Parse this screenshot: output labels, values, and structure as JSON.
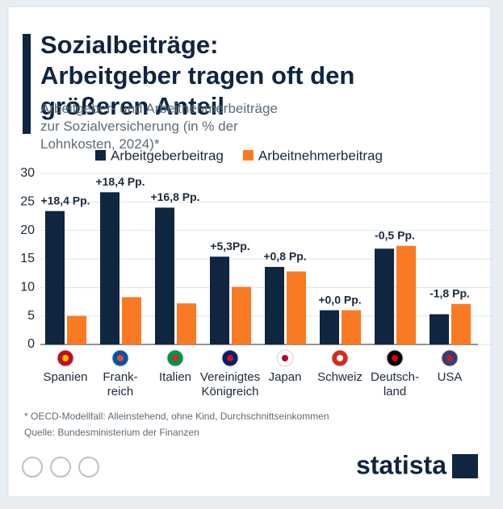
{
  "chart_data": {
    "type": "bar",
    "title": "Sozialbeiträge: Arbeitgeber tragen oft den größeren Anteil",
    "subtitle": "Arbeitgeber- und Arbeitnehmerbeiträge zur Sozialversicherung (in % der Lohnkosten, 2024)*",
    "categories": [
      "Spanien",
      "Frank-\nreich",
      "Italien",
      "Vereinigtes\nKönigreich",
      "Japan",
      "Schweiz",
      "Deutsch-\nland",
      "USA"
    ],
    "series": [
      {
        "name": "Arbeitgeberbeitrag",
        "color": "#0f2540",
        "values": [
          23.4,
          26.7,
          24.0,
          15.4,
          13.6,
          6.0,
          16.8,
          5.3
        ]
      },
      {
        "name": "Arbeitnehmerbeitrag",
        "color": "#fa7a23",
        "values": [
          5.0,
          8.3,
          7.2,
          10.1,
          12.8,
          6.0,
          17.3,
          7.1
        ]
      }
    ],
    "annotations": [
      "+18,4 Pp.",
      "+18,4 Pp.",
      "+16,8 Pp.",
      "+5,3Pp.",
      "+0,8 Pp.",
      "+0,0 Pp.",
      "-0,5 Pp.",
      "-1,8 Pp."
    ],
    "ylim": [
      0,
      30
    ],
    "yticks": [
      0,
      5,
      10,
      15,
      20,
      25,
      30
    ],
    "grid": true,
    "note": "* OECD-Modellfall: Alleinstehend, ohne Kind, Durchschnittseinkommen",
    "source": "Quelle: Bundesministerium der Finanzen",
    "logo": "statista"
  }
}
